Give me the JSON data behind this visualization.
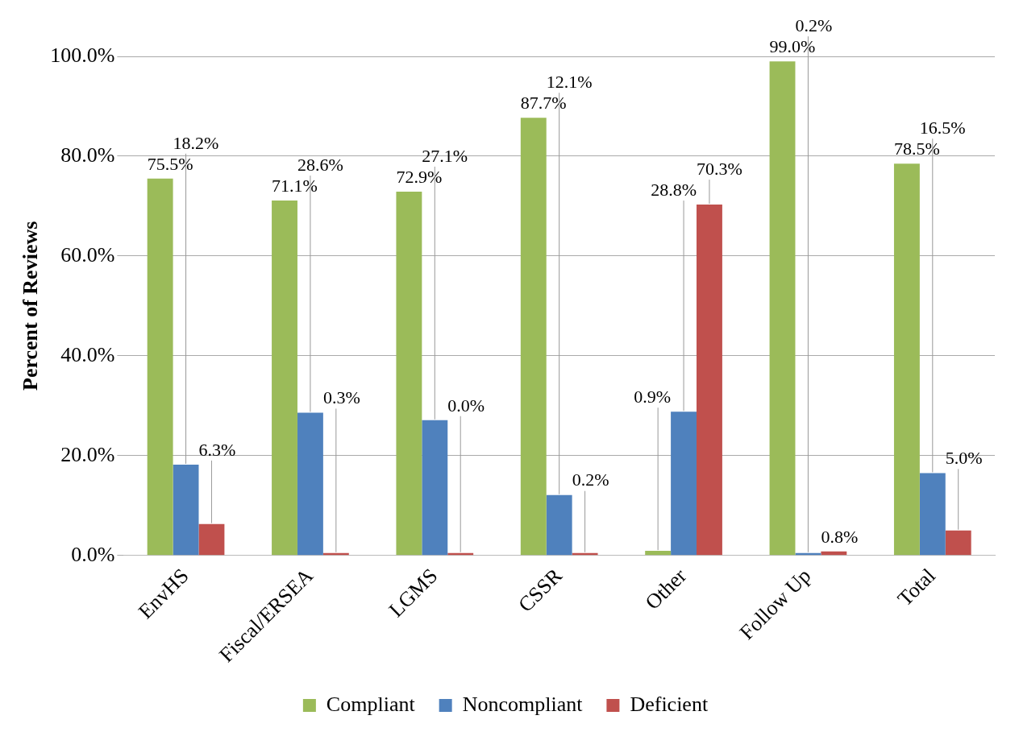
{
  "chart_data": {
    "type": "bar",
    "ylabel": "Percent of Reviews",
    "categories": [
      "EnvHS",
      "Fiscal/ERSEA",
      "LGMS",
      "CSSR",
      "Other",
      "Follow Up",
      "Total"
    ],
    "series": [
      {
        "name": "Compliant",
        "color": "#9bbb59",
        "values": [
          75.5,
          71.1,
          72.9,
          87.7,
          0.9,
          99.0,
          78.5
        ],
        "value_labels": [
          "75.5%",
          "71.1%",
          "72.9%",
          "87.7%",
          "0.9%",
          "99.0%",
          "78.5%"
        ]
      },
      {
        "name": "Noncompliant",
        "color": "#4f81bd",
        "values": [
          18.2,
          28.6,
          27.1,
          12.1,
          28.8,
          0.2,
          16.5
        ],
        "value_labels": [
          "18.2%",
          "28.6%",
          "27.1%",
          "12.1%",
          "28.8%",
          "0.2%",
          "16.5%"
        ]
      },
      {
        "name": "Deficient",
        "color": "#c0504d",
        "values": [
          6.3,
          0.3,
          0.0,
          0.2,
          70.3,
          0.8,
          5.0
        ],
        "value_labels": [
          "6.3%",
          "0.3%",
          "0.0%",
          "0.2%",
          "70.3%",
          "0.8%",
          "5.0%"
        ]
      }
    ],
    "ylim": [
      0,
      100
    ],
    "yticks": [
      {
        "value": 0,
        "label": "0.0%"
      },
      {
        "value": 20,
        "label": "20.0%"
      },
      {
        "value": 40,
        "label": "40.0%"
      },
      {
        "value": 60,
        "label": "60.0%"
      },
      {
        "value": 80,
        "label": "80.0%"
      },
      {
        "value": 100,
        "label": "100.0%"
      }
    ],
    "grid": "y",
    "legend": "bottom"
  }
}
